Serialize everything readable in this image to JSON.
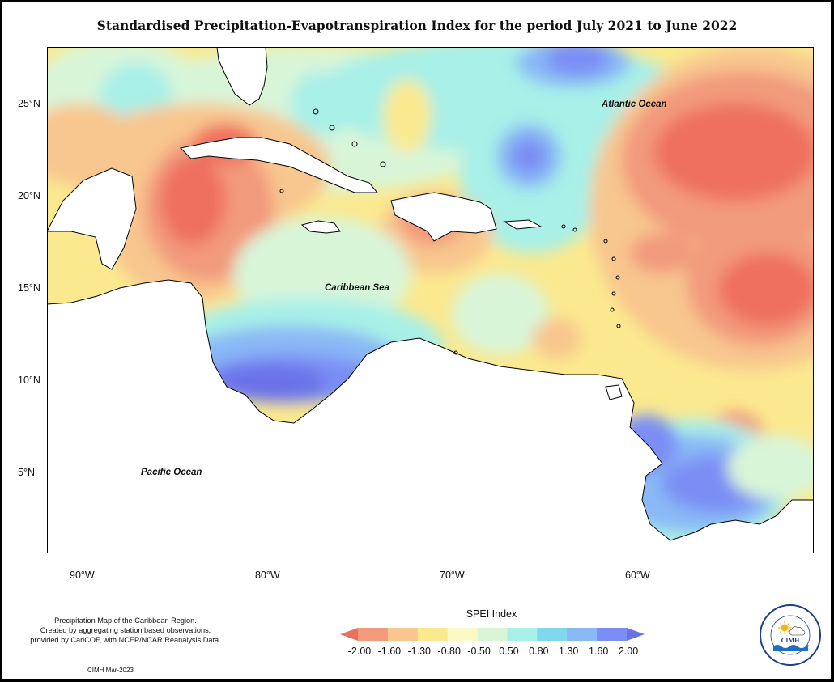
{
  "title": "Standardised Precipitation-Evapotranspiration Index for the period July 2021 to June 2022",
  "map": {
    "lat_ticks": [
      "25°N",
      "20°N",
      "15°N",
      "10°N",
      "5°N"
    ],
    "lon_ticks": [
      "90°W",
      "80°W",
      "70°W",
      "60°W"
    ],
    "labels": {
      "atlantic": "Atlantic Ocean",
      "caribbean": "Caribbean Sea",
      "pacific": "Pacific Ocean"
    }
  },
  "legend": {
    "title": "SPEI Index",
    "ticks": [
      "-2.00",
      "-1.60",
      "-1.30",
      "-0.80",
      "-0.50",
      "0.50",
      "0.80",
      "1.30",
      "1.60",
      "2.00"
    ],
    "colors": [
      "#ef6f5e",
      "#f29a7c",
      "#f8c68f",
      "#fbe98f",
      "#fbf9c5",
      "#d8f5d8",
      "#a8f0e8",
      "#7fd8ee",
      "#8ab8f5",
      "#7a8ef5",
      "#6b72e8"
    ]
  },
  "footnote": {
    "line1": "Precipitation Map of the Caribbean Region.",
    "line2": "Created by aggregating station based observations,",
    "line3": "provided by CariCOF, with NCEP/NCAR Reanalysis Data.",
    "credit": "CIMH Mar-2023"
  },
  "logo": {
    "text": "CIMH"
  }
}
